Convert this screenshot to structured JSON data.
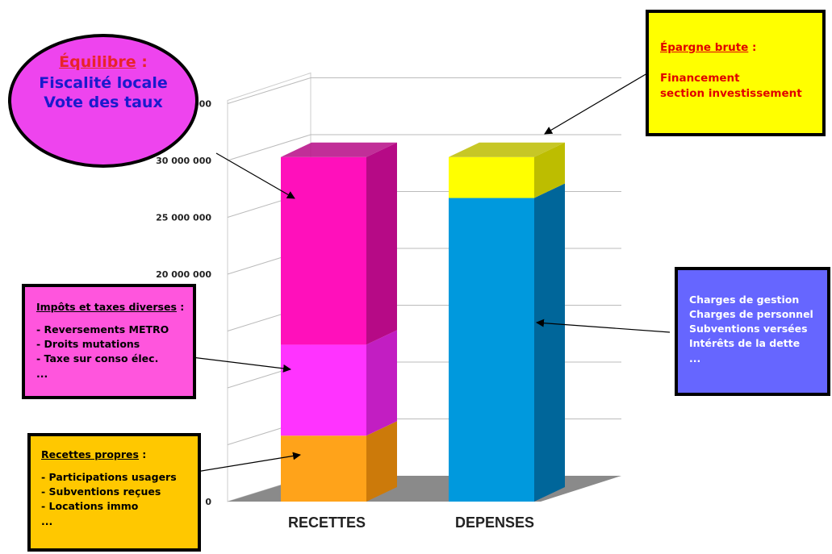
{
  "chart_data": {
    "type": "bar",
    "stacked": true,
    "style": "3d",
    "categories": [
      "RECETTES",
      "DEPENSES"
    ],
    "y_ticks": [
      "0",
      "",
      "",
      "",
      "20 000 000",
      "25 000 000",
      "30 000 000",
      "000"
    ],
    "ylim": [
      0,
      35000000
    ],
    "grid": true,
    "segments": [
      {
        "category": "RECETTES",
        "from": 0,
        "to": 5800000,
        "color": "#ffa31a",
        "side": "#cc7a0a"
      },
      {
        "category": "RECETTES",
        "from": 5800000,
        "to": 13800000,
        "color": "#ff33ff",
        "side": "#c21ec2"
      },
      {
        "category": "RECETTES",
        "from": 13800000,
        "to": 30300000,
        "color": "#ff10bb",
        "side": "#b60a86"
      },
      {
        "category": "DEPENSES",
        "from": 0,
        "to": 26700000,
        "color": "#0099dd",
        "side": "#00669a"
      },
      {
        "category": "DEPENSES",
        "from": 26700000,
        "to": 30300000,
        "color": "#ffff00",
        "side": "#bdbd00"
      }
    ]
  },
  "annotations": {
    "equilibre": {
      "title": "Équilibre",
      "colon": " :",
      "lines": [
        "Fiscalité locale",
        "Vote des taux"
      ]
    },
    "epargne": {
      "title": "Épargne brute",
      "colon": " :",
      "lines": [
        "Financement",
        "section investissement"
      ]
    },
    "impots": {
      "title": "Impôts et taxes diverses",
      "colon": " :",
      "lines": [
        "- Reversements METRO",
        "- Droits mutations",
        "- Taxe sur conso élec.",
        "..."
      ]
    },
    "recettes_propres": {
      "title": "Recettes propres",
      "colon": " :",
      "lines": [
        "- Participations usagers",
        "- Subventions reçues",
        "- Locations immo",
        "..."
      ]
    },
    "charges": {
      "lines": [
        "Charges de gestion",
        "Charges de personnel",
        "Subventions versées",
        "Intérêts de la dette",
        "..."
      ]
    }
  }
}
